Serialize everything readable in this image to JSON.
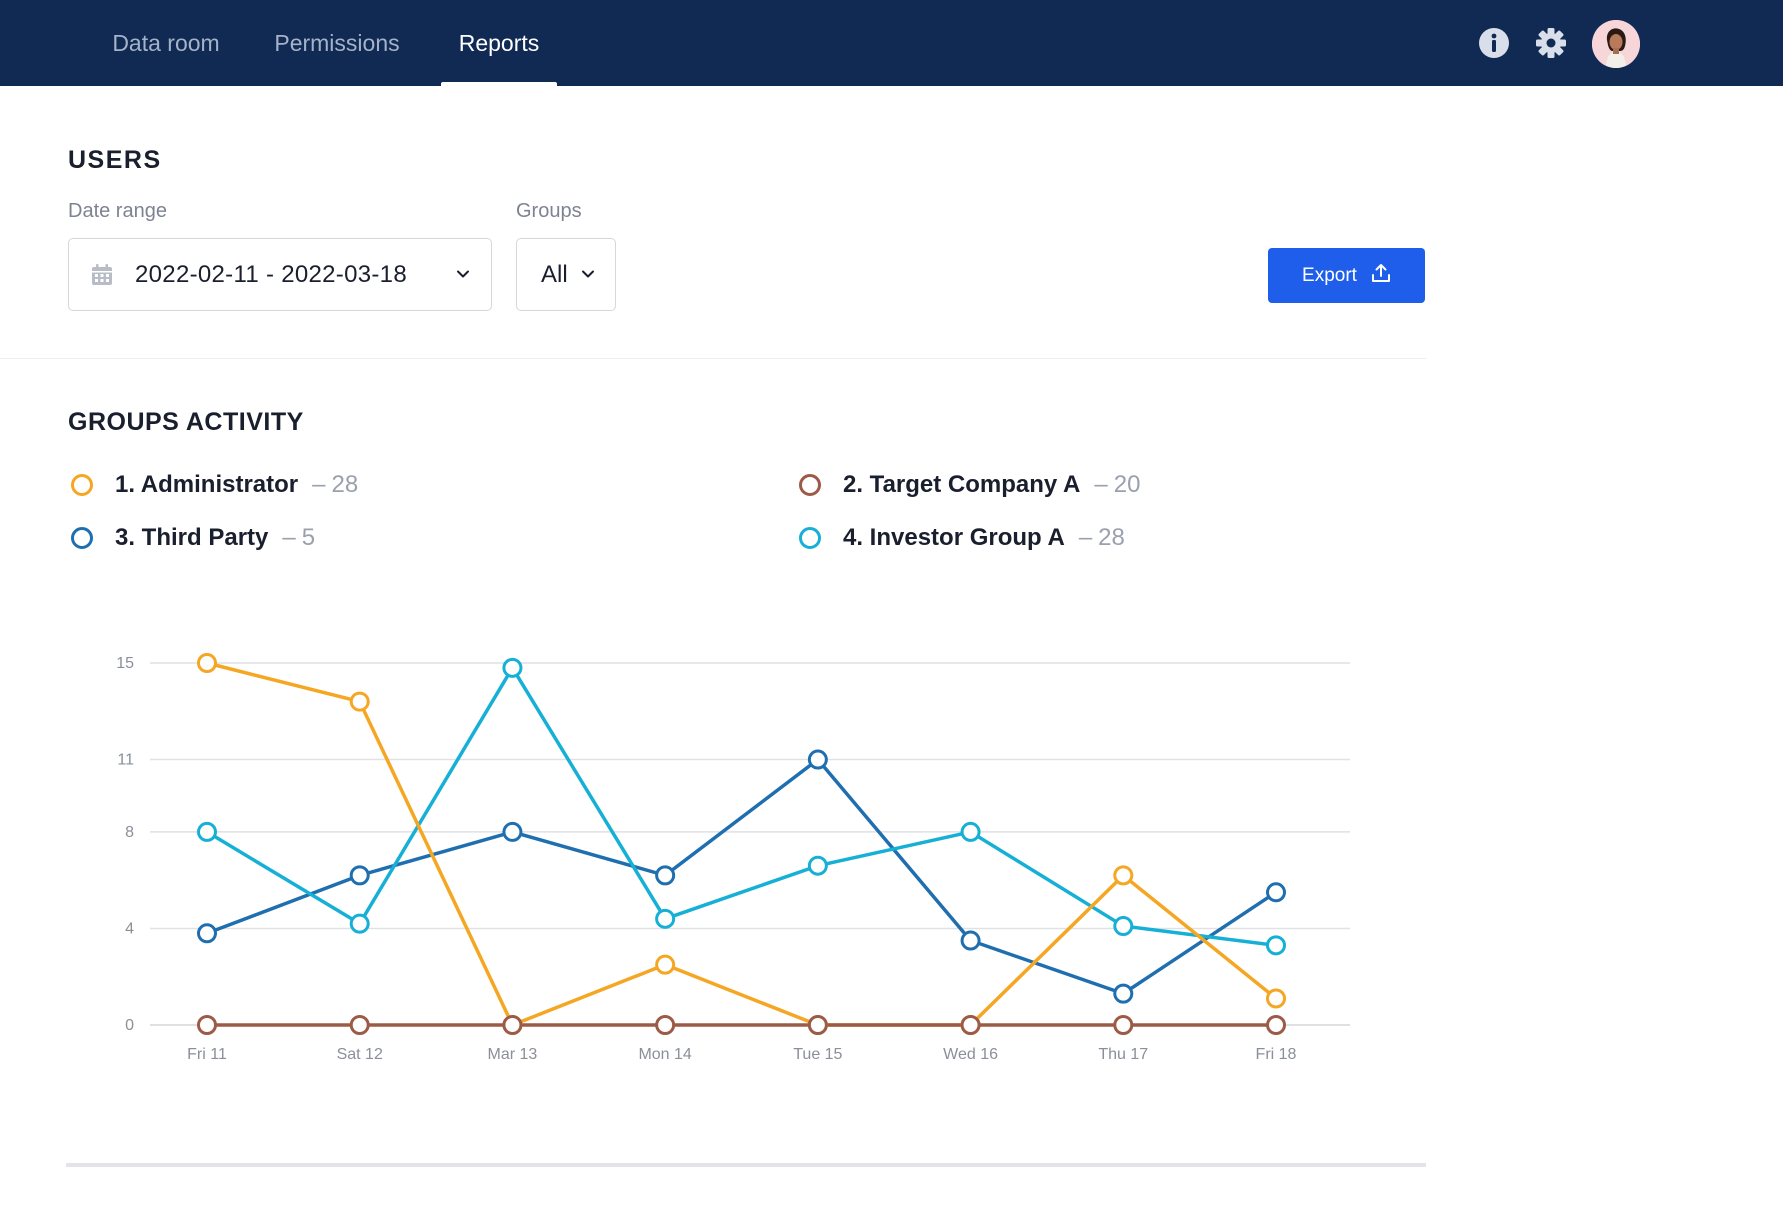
{
  "nav": {
    "tabs": [
      {
        "label": "Data room"
      },
      {
        "label": "Permissions"
      },
      {
        "label": "Reports",
        "active": true
      }
    ],
    "icons": [
      "info-icon",
      "gear-icon"
    ]
  },
  "users": {
    "title": "USERS",
    "date_range_label": "Date range",
    "date_range_value": "2022-02-11 - 2022-03-18",
    "groups_label": "Groups",
    "groups_value": "All",
    "export_label": "Export"
  },
  "groups_activity": {
    "title": "GROUPS ACTIVITY",
    "legend": [
      {
        "name": "1. Administrator",
        "count": "28",
        "color": "#f5a623"
      },
      {
        "name": "2. Target Company A",
        "count": "20",
        "color": "#9c5b47"
      },
      {
        "name": "3. Third Party",
        "count": "5",
        "color": "#1f6fb0"
      },
      {
        "name": "4. Investor Group A",
        "count": "28",
        "color": "#16b0d6"
      }
    ]
  },
  "colors": {
    "nav_bg": "#102a54",
    "accent": "#1f5eea"
  },
  "chart_data": {
    "type": "line",
    "categories": [
      "Fri 11",
      "Sat 12",
      "Mar 13",
      "Mon 14",
      "Tue 15",
      "Wed 16",
      "Thu 17",
      "Fri 18"
    ],
    "y_ticks": [
      "0",
      "4",
      "8",
      "11",
      "15"
    ],
    "ylim": [
      0,
      15
    ],
    "grid": true,
    "series": [
      {
        "name": "1. Administrator",
        "color": "#f5a623",
        "values": [
          15,
          13.4,
          0,
          2.5,
          0,
          0,
          6.2,
          1.1
        ]
      },
      {
        "name": "2. Target Company A",
        "color": "#9c5b47",
        "values": [
          0,
          0,
          0,
          0,
          0,
          0,
          0,
          0
        ]
      },
      {
        "name": "3. Third Party",
        "color": "#1f6fb0",
        "values": [
          3.8,
          6.2,
          8,
          6.2,
          11,
          3.5,
          1.3,
          5.5
        ]
      },
      {
        "name": "4. Investor Group A",
        "color": "#16b0d6",
        "values": [
          8,
          4.2,
          14.8,
          4.4,
          6.6,
          8,
          4.1,
          3.3
        ]
      }
    ]
  }
}
